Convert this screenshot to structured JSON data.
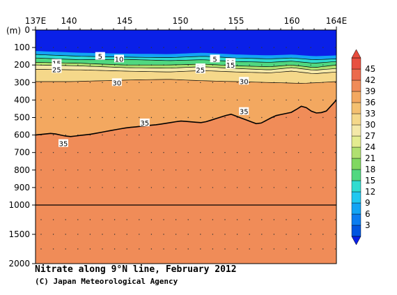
{
  "chart_data": {
    "type": "heatmap",
    "title": "Nitrate along 9°N line, February 2012",
    "credit": "(C) Japan Meteorological Agency",
    "x_ticks": [
      {
        "value": 137,
        "label": "137E"
      },
      {
        "value": 140,
        "label": "140"
      },
      {
        "value": 145,
        "label": "145"
      },
      {
        "value": 150,
        "label": "150"
      },
      {
        "value": 155,
        "label": "155"
      },
      {
        "value": 160,
        "label": "160"
      },
      {
        "value": 164,
        "label": "164E"
      }
    ],
    "xlim": [
      137,
      164
    ],
    "y_unit_label": "(m)",
    "y_ticks": [
      0,
      100,
      200,
      300,
      400,
      500,
      600,
      700,
      800,
      900,
      1000,
      1500,
      2000
    ],
    "ylim": [
      0,
      2000
    ],
    "y_scale_break": 1000,
    "colorbar": {
      "levels": [
        3,
        6,
        9,
        12,
        15,
        18,
        21,
        24,
        27,
        30,
        33,
        36,
        39,
        42,
        45
      ],
      "colors": [
        "#0055e0",
        "#0a7cf0",
        "#12a4f4",
        "#20c8f0",
        "#30dcd0",
        "#50d880",
        "#80d860",
        "#b0e070",
        "#e4ec90",
        "#f4e8a8",
        "#f5d88a",
        "#f4c070",
        "#f3a860",
        "#f08c58",
        "#ec6a4c",
        "#e85040"
      ],
      "under_color": "#0a20e8",
      "over_color": "#e84c3c"
    },
    "isolines": [
      {
        "value": 5,
        "points": [
          [
            137,
            140
          ],
          [
            141,
            150
          ],
          [
            145,
            155
          ],
          [
            149,
            158
          ],
          [
            152,
            150
          ],
          [
            155,
            160
          ],
          [
            158,
            165
          ],
          [
            160,
            160
          ],
          [
            162,
            170
          ],
          [
            164,
            165
          ]
        ]
      },
      {
        "value": 10,
        "points": [
          [
            137,
            160
          ],
          [
            141,
            170
          ],
          [
            145,
            168
          ],
          [
            149,
            175
          ],
          [
            152,
            170
          ],
          [
            155,
            180
          ],
          [
            158,
            185
          ],
          [
            160,
            178
          ],
          [
            162,
            190
          ],
          [
            164,
            180
          ]
        ]
      },
      {
        "value": 15,
        "points": [
          [
            137,
            185
          ],
          [
            141,
            190
          ],
          [
            145,
            200
          ],
          [
            149,
            200
          ],
          [
            152,
            195
          ],
          [
            155,
            205
          ],
          [
            158,
            210
          ],
          [
            160,
            200
          ],
          [
            162,
            215
          ],
          [
            164,
            200
          ]
        ]
      },
      {
        "value": 20,
        "points": [
          [
            137,
            200
          ],
          [
            141,
            205
          ],
          [
            145,
            215
          ],
          [
            149,
            218
          ],
          [
            152,
            210
          ],
          [
            155,
            220
          ],
          [
            158,
            228
          ],
          [
            160,
            215
          ],
          [
            162,
            230
          ],
          [
            164,
            220
          ]
        ]
      },
      {
        "value": 25,
        "points": [
          [
            137,
            225
          ],
          [
            141,
            228
          ],
          [
            145,
            235
          ],
          [
            149,
            240
          ],
          [
            152,
            232
          ],
          [
            155,
            240
          ],
          [
            158,
            245
          ],
          [
            160,
            235
          ],
          [
            162,
            250
          ],
          [
            164,
            240
          ]
        ]
      },
      {
        "value": 30,
        "points": [
          [
            137,
            295
          ],
          [
            140,
            295
          ],
          [
            143,
            290
          ],
          [
            146,
            285
          ],
          [
            149,
            282
          ],
          [
            152,
            290
          ],
          [
            155,
            295
          ],
          [
            158,
            300
          ],
          [
            161,
            305
          ],
          [
            164,
            295
          ]
        ]
      },
      {
        "value": 35,
        "points": [
          [
            137,
            600
          ],
          [
            138.5,
            590
          ],
          [
            140,
            610
          ],
          [
            142,
            595
          ],
          [
            145,
            560
          ],
          [
            148,
            540
          ],
          [
            150,
            520
          ],
          [
            152,
            530
          ],
          [
            154.5,
            480
          ],
          [
            157,
            540
          ],
          [
            158.5,
            490
          ],
          [
            160,
            470
          ],
          [
            161,
            430
          ],
          [
            162,
            475
          ],
          [
            163,
            470
          ],
          [
            164,
            400
          ]
        ]
      }
    ],
    "inline_labels": [
      {
        "text": "5",
        "x": 142.8,
        "y": 150
      },
      {
        "text": "10",
        "x": 144.5,
        "y": 165
      },
      {
        "text": "15",
        "x": 138.9,
        "y": 190
      },
      {
        "text": "20",
        "x": 138.9,
        "y": 215
      },
      {
        "text": "25",
        "x": 138.9,
        "y": 225
      },
      {
        "text": "30",
        "x": 144.3,
        "y": 300
      },
      {
        "text": "5",
        "x": 153.1,
        "y": 165
      },
      {
        "text": "10",
        "x": 154.5,
        "y": 185
      },
      {
        "text": "15",
        "x": 154.5,
        "y": 200
      },
      {
        "text": "20",
        "x": 151.8,
        "y": 215
      },
      {
        "text": "25",
        "x": 151.8,
        "y": 228
      },
      {
        "text": "30",
        "x": 155.7,
        "y": 292
      },
      {
        "text": "35",
        "x": 146.8,
        "y": 530
      },
      {
        "text": "35",
        "x": 155.7,
        "y": 465
      },
      {
        "text": "35",
        "x": 139.5,
        "y": 648
      }
    ],
    "grid": false,
    "legend": "right colorbar"
  }
}
